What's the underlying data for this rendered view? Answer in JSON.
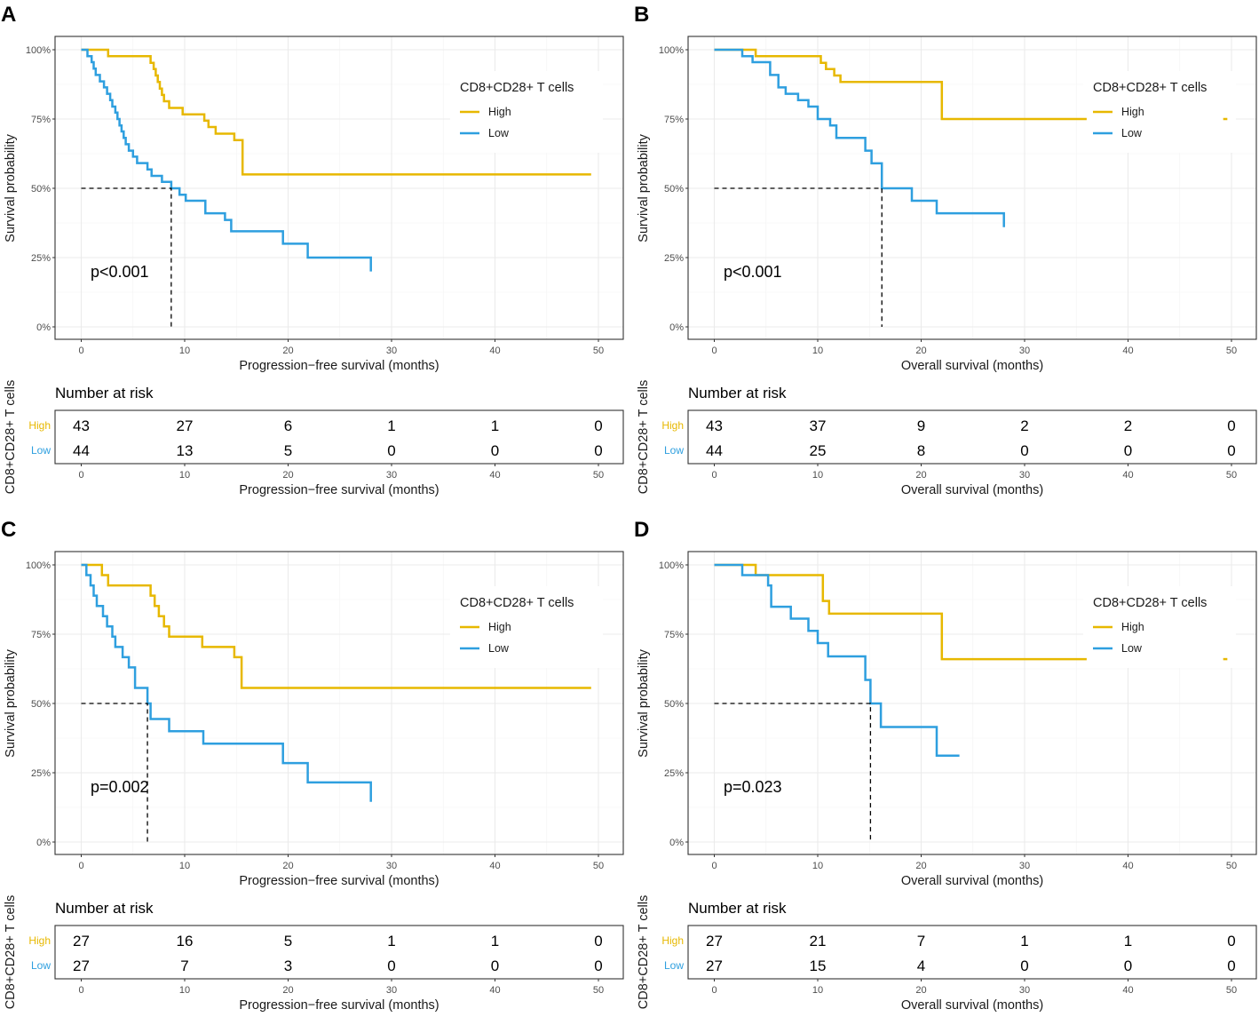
{
  "colors": {
    "high": "#E7B800",
    "low": "#2E9FDF"
  },
  "chart_data": [
    {
      "type": "line",
      "panel": "A",
      "xlabel": "Progression−free survival (months)",
      "ylabel": "Survival probability",
      "xlim": [
        0,
        50
      ],
      "ylim": [
        0,
        1
      ],
      "xticks": [
        "0",
        "10",
        "20",
        "30",
        "40",
        "50"
      ],
      "yticks": [
        "0%",
        "25%",
        "50%",
        "75%",
        "100%"
      ],
      "legend_title": "CD8+CD28+ T cells",
      "legend_labels": [
        "High",
        "Low"
      ],
      "pvalue": "p<0.001",
      "median_low": 8.7,
      "series": [
        {
          "name": "High",
          "x": [
            0,
            2,
            2.6,
            6.7,
            7,
            7.2,
            7.4,
            7.6,
            7.8,
            8,
            8.5,
            9.8,
            11.9,
            12.3,
            13,
            14.8,
            15.6,
            49.3
          ],
          "y": [
            1,
            1,
            0.977,
            0.953,
            0.93,
            0.907,
            0.884,
            0.86,
            0.837,
            0.814,
            0.79,
            0.767,
            0.744,
            0.721,
            0.697,
            0.674,
            0.55,
            0.55
          ]
        },
        {
          "name": "Low",
          "x": [
            0,
            0.6,
            1,
            1.2,
            1.4,
            1.8,
            2.2,
            2.5,
            2.8,
            3,
            3.3,
            3.5,
            3.7,
            3.9,
            4.1,
            4.3,
            4.6,
            5,
            5.4,
            6.4,
            6.8,
            7.8,
            8.7,
            9.5,
            10.1,
            12,
            13.9,
            14.5,
            19.5,
            21.9,
            28
          ],
          "y": [
            1,
            0.977,
            0.955,
            0.932,
            0.909,
            0.886,
            0.864,
            0.841,
            0.818,
            0.795,
            0.773,
            0.75,
            0.727,
            0.705,
            0.682,
            0.659,
            0.636,
            0.614,
            0.591,
            0.568,
            0.545,
            0.523,
            0.5,
            0.477,
            0.455,
            0.41,
            0.386,
            0.345,
            0.3,
            0.25,
            0.2
          ]
        }
      ],
      "risk_table": {
        "title": "Number at risk",
        "strata_title": "CD8+CD28+ T cells",
        "high": [
          "43",
          "27",
          "6",
          "1",
          "1",
          "0"
        ],
        "low": [
          "44",
          "13",
          "5",
          "0",
          "0",
          "0"
        ]
      }
    },
    {
      "type": "line",
      "panel": "B",
      "xlabel": "Overall survival (months)",
      "ylabel": "Survival probability",
      "xlim": [
        0,
        50
      ],
      "ylim": [
        0,
        1
      ],
      "xticks": [
        "0",
        "10",
        "20",
        "30",
        "40",
        "50"
      ],
      "yticks": [
        "0%",
        "25%",
        "50%",
        "75%",
        "100%"
      ],
      "legend_title": "CD8+CD28+ T cells",
      "legend_labels": [
        "High",
        "Low"
      ],
      "pvalue": "p<0.001",
      "median_low": 16.2,
      "series": [
        {
          "name": "High",
          "x": [
            0,
            4,
            10.3,
            10.8,
            11.6,
            12.2,
            22,
            36
          ],
          "y": [
            1,
            0.977,
            0.953,
            0.93,
            0.907,
            0.884,
            0.75,
            0.75
          ]
        },
        {
          "name": "Low",
          "x": [
            0,
            2.7,
            3.7,
            5.4,
            6.2,
            6.9,
            8.1,
            9.1,
            10,
            11.2,
            11.8,
            14.6,
            15.2,
            16.2,
            19.1,
            21.5,
            28
          ],
          "y": [
            1,
            0.977,
            0.955,
            0.909,
            0.864,
            0.841,
            0.818,
            0.795,
            0.75,
            0.727,
            0.682,
            0.636,
            0.59,
            0.5,
            0.455,
            0.41,
            0.36
          ]
        }
      ],
      "risk_table": {
        "title": "Number at risk",
        "strata_title": "CD8+CD28+ T cells",
        "high": [
          "43",
          "37",
          "9",
          "2",
          "2",
          "0"
        ],
        "low": [
          "44",
          "25",
          "8",
          "0",
          "0",
          "0"
        ]
      }
    },
    {
      "type": "line",
      "panel": "C",
      "xlabel": "Progression−free survival (months)",
      "ylabel": "Survival probability",
      "xlim": [
        0,
        50
      ],
      "ylim": [
        0,
        1
      ],
      "xticks": [
        "0",
        "10",
        "20",
        "30",
        "40",
        "50"
      ],
      "yticks": [
        "0%",
        "25%",
        "50%",
        "75%",
        "100%"
      ],
      "legend_title": "CD8+CD28+ T cells",
      "legend_labels": [
        "High",
        "Low"
      ],
      "pvalue": "p=0.002",
      "median_low": 6.4,
      "series": [
        {
          "name": "High",
          "x": [
            0,
            2,
            2.6,
            6.7,
            7.1,
            7.5,
            8,
            8.5,
            11.7,
            14.8,
            15.5,
            49.3
          ],
          "y": [
            1,
            0.963,
            0.926,
            0.889,
            0.852,
            0.815,
            0.778,
            0.741,
            0.704,
            0.667,
            0.556,
            0.556
          ]
        },
        {
          "name": "Low",
          "x": [
            0,
            0.5,
            0.9,
            1.2,
            1.5,
            2.1,
            2.5,
            3,
            3.3,
            4,
            4.6,
            5.2,
            6.4,
            6.7,
            8.5,
            11.8,
            19.5,
            21.9,
            28
          ],
          "y": [
            1,
            0.963,
            0.926,
            0.889,
            0.852,
            0.815,
            0.778,
            0.741,
            0.704,
            0.667,
            0.63,
            0.556,
            0.5,
            0.444,
            0.4,
            0.355,
            0.285,
            0.215,
            0.145
          ]
        }
      ],
      "risk_table": {
        "title": "Number at risk",
        "strata_title": "CD8+CD28+ T cells",
        "high": [
          "27",
          "16",
          "5",
          "1",
          "1",
          "0"
        ],
        "low": [
          "27",
          "7",
          "3",
          "0",
          "0",
          "0"
        ]
      }
    },
    {
      "type": "line",
      "panel": "D",
      "xlabel": "Overall survival (months)",
      "ylabel": "Survival probability",
      "xlim": [
        0,
        50
      ],
      "ylim": [
        0,
        1
      ],
      "xticks": [
        "0",
        "10",
        "20",
        "30",
        "40",
        "50"
      ],
      "yticks": [
        "0%",
        "25%",
        "50%",
        "75%",
        "100%"
      ],
      "legend_title": "CD8+CD28+ T cells",
      "legend_labels": [
        "High",
        "Low"
      ],
      "pvalue": "p=0.023",
      "median_low": 15.1,
      "series": [
        {
          "name": "High",
          "x": [
            0,
            4,
            10.5,
            11.1,
            22,
            36
          ],
          "y": [
            1,
            0.963,
            0.87,
            0.824,
            0.66,
            0.66
          ]
        },
        {
          "name": "Low",
          "x": [
            0,
            2.7,
            5.2,
            5.5,
            7.4,
            9.1,
            10,
            11,
            14.6,
            15.1,
            16.1,
            21.5,
            23.7
          ],
          "y": [
            1,
            0.963,
            0.926,
            0.849,
            0.806,
            0.762,
            0.718,
            0.67,
            0.585,
            0.5,
            0.415,
            0.312,
            0.312
          ]
        }
      ],
      "risk_table": {
        "title": "Number at risk",
        "strata_title": "CD8+CD28+ T cells",
        "high": [
          "27",
          "21",
          "7",
          "1",
          "1",
          "0"
        ],
        "low": [
          "27",
          "15",
          "4",
          "0",
          "0",
          "0"
        ]
      }
    }
  ]
}
